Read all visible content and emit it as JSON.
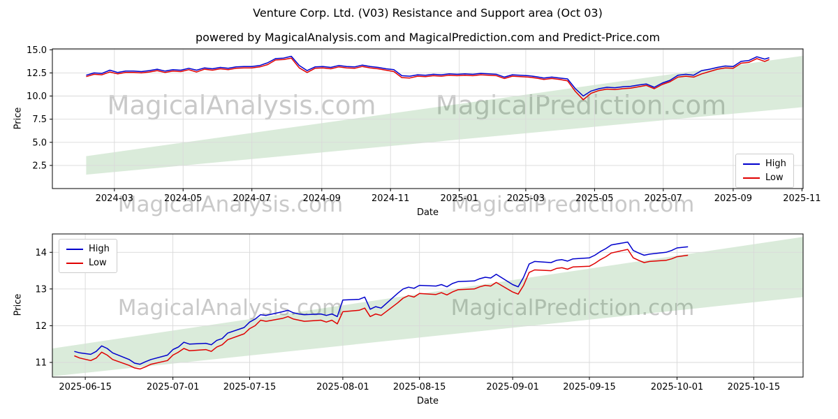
{
  "figure": {
    "title": "Venture Corp. Ltd. (V03) Resistance and Support area (Oct 03)",
    "subtitle": "powered by MagicalAnalysis.com and MagicalPrediction.com and Predict-Price.com"
  },
  "watermarks": {
    "left": "MagicalAnalysis.com",
    "right": "MagicalPrediction.com"
  },
  "colors": {
    "high": "#0000cd",
    "low": "#e00000",
    "band": "rgba(34,139,34,0.17)",
    "grid": "#d9d9d9",
    "axis": "#000000",
    "watermark": "#c9c9c9",
    "background": "#ffffff"
  },
  "chart_data": [
    {
      "type": "line",
      "xlabel": "Date",
      "ylabel": "Price",
      "x_unit": "days since 2024-02-05",
      "xlim": [
        -30,
        636
      ],
      "ylim": [
        0,
        15.1
      ],
      "grid": true,
      "legend_loc": "center right",
      "xticks": [
        {
          "label": "2024-03",
          "day": 25
        },
        {
          "label": "2024-05",
          "day": 86
        },
        {
          "label": "2024-07",
          "day": 147
        },
        {
          "label": "2024-09",
          "day": 209
        },
        {
          "label": "2024-11",
          "day": 270
        },
        {
          "label": "2025-01",
          "day": 331
        },
        {
          "label": "2025-03",
          "day": 390
        },
        {
          "label": "2025-05",
          "day": 451
        },
        {
          "label": "2025-07",
          "day": 512
        },
        {
          "label": "2025-09",
          "day": 574
        },
        {
          "label": "2025-11",
          "day": 635
        }
      ],
      "yticks": {
        "values": [
          2.5,
          5.0,
          7.5,
          10.0,
          12.5,
          15.0
        ],
        "labels": [
          "2.5",
          "5.0",
          "7.5",
          "10.0",
          "12.5",
          "15.0"
        ]
      },
      "x": [
        0,
        7,
        14,
        21,
        28,
        35,
        42,
        49,
        56,
        63,
        70,
        77,
        84,
        91,
        98,
        105,
        112,
        119,
        126,
        133,
        140,
        147,
        154,
        161,
        168,
        175,
        182,
        189,
        196,
        203,
        210,
        217,
        224,
        231,
        238,
        245,
        252,
        259,
        266,
        273,
        280,
        287,
        294,
        301,
        308,
        315,
        322,
        329,
        336,
        343,
        350,
        357,
        364,
        371,
        378,
        385,
        392,
        399,
        406,
        413,
        420,
        427,
        434,
        441,
        448,
        455,
        462,
        469,
        476,
        483,
        490,
        497,
        504,
        511,
        518,
        525,
        532,
        539,
        546,
        553,
        560,
        567,
        574,
        581,
        588,
        595,
        602,
        606
      ],
      "series": [
        {
          "name": "High",
          "color_key": "high",
          "values": [
            12.25,
            12.5,
            12.45,
            12.8,
            12.55,
            12.7,
            12.7,
            12.65,
            12.75,
            12.9,
            12.7,
            12.85,
            12.8,
            13.0,
            12.8,
            13.05,
            12.95,
            13.1,
            13.0,
            13.15,
            13.2,
            13.2,
            13.3,
            13.6,
            14.05,
            14.1,
            14.3,
            13.3,
            12.75,
            13.15,
            13.2,
            13.1,
            13.3,
            13.2,
            13.15,
            13.35,
            13.2,
            13.1,
            12.95,
            12.85,
            12.2,
            12.15,
            12.3,
            12.25,
            12.35,
            12.3,
            12.4,
            12.35,
            12.4,
            12.35,
            12.45,
            12.4,
            12.35,
            12.05,
            12.3,
            12.25,
            12.2,
            12.1,
            11.95,
            12.05,
            11.95,
            11.85,
            10.8,
            10.0,
            10.55,
            10.8,
            10.95,
            10.9,
            11.0,
            11.05,
            11.2,
            11.3,
            10.95,
            11.4,
            11.7,
            12.25,
            12.35,
            12.25,
            12.75,
            12.9,
            13.1,
            13.25,
            13.2,
            13.75,
            13.85,
            14.25,
            14.0,
            14.15
          ]
        },
        {
          "name": "Low",
          "color_key": "low",
          "values": [
            12.1,
            12.35,
            12.3,
            12.6,
            12.4,
            12.55,
            12.55,
            12.5,
            12.6,
            12.75,
            12.55,
            12.7,
            12.65,
            12.85,
            12.6,
            12.9,
            12.8,
            12.95,
            12.85,
            13.0,
            13.05,
            13.05,
            13.15,
            13.4,
            13.9,
            13.95,
            14.1,
            13.05,
            12.55,
            13.0,
            13.05,
            12.95,
            13.15,
            13.05,
            13.0,
            13.2,
            13.05,
            12.95,
            12.8,
            12.65,
            12.0,
            11.95,
            12.15,
            12.1,
            12.2,
            12.15,
            12.25,
            12.2,
            12.25,
            12.2,
            12.3,
            12.25,
            12.2,
            11.9,
            12.15,
            12.1,
            12.05,
            11.95,
            11.8,
            11.9,
            11.8,
            11.65,
            10.5,
            9.6,
            10.3,
            10.6,
            10.75,
            10.7,
            10.8,
            10.85,
            11.0,
            11.15,
            10.8,
            11.25,
            11.55,
            12.05,
            12.15,
            12.05,
            12.4,
            12.65,
            12.9,
            13.05,
            13.0,
            13.55,
            13.65,
            14.05,
            13.75,
            13.95
          ]
        }
      ],
      "band": {
        "name": "support-resistance-area",
        "x": [
          0,
          636
        ],
        "lower": [
          1.5,
          8.8
        ],
        "upper": [
          3.5,
          14.35
        ]
      }
    },
    {
      "type": "line",
      "xlabel": "Date",
      "ylabel": "Price",
      "x_unit": "days since 2025-06-13",
      "xlim": [
        -4,
        133
      ],
      "ylim": [
        10.6,
        14.5
      ],
      "grid": true,
      "legend_loc": "upper left",
      "xticks": [
        {
          "label": "2025-06-15",
          "day": 2
        },
        {
          "label": "2025-07-01",
          "day": 18
        },
        {
          "label": "2025-07-15",
          "day": 32
        },
        {
          "label": "2025-08-01",
          "day": 49
        },
        {
          "label": "2025-08-15",
          "day": 63
        },
        {
          "label": "2025-09-01",
          "day": 80
        },
        {
          "label": "2025-09-15",
          "day": 94
        },
        {
          "label": "2025-10-01",
          "day": 110
        },
        {
          "label": "2025-10-15",
          "day": 124
        }
      ],
      "yticks": {
        "values": [
          11,
          12,
          13,
          14
        ],
        "labels": [
          "11",
          "12",
          "13",
          "14"
        ]
      },
      "x": [
        0,
        1,
        3,
        4,
        5,
        6,
        7,
        10,
        11,
        12,
        13,
        14,
        17,
        18,
        19,
        20,
        21,
        24,
        25,
        26,
        27,
        28,
        31,
        32,
        33,
        34,
        35,
        38,
        39,
        40,
        41,
        42,
        45,
        46,
        47,
        48,
        49,
        52,
        53,
        54,
        55,
        56,
        59,
        60,
        61,
        62,
        63,
        66,
        67,
        68,
        69,
        70,
        73,
        74,
        75,
        76,
        77,
        80,
        81,
        82,
        83,
        84,
        87,
        88,
        89,
        90,
        91,
        94,
        95,
        96,
        97,
        98,
        101,
        102,
        103,
        104,
        105,
        108,
        109,
        110,
        112
      ],
      "series": [
        {
          "name": "High",
          "color_key": "high",
          "values": [
            11.3,
            11.26,
            11.22,
            11.3,
            11.45,
            11.38,
            11.26,
            11.08,
            10.98,
            10.95,
            11.02,
            11.08,
            11.2,
            11.35,
            11.42,
            11.55,
            11.5,
            11.52,
            11.48,
            11.6,
            11.65,
            11.8,
            11.95,
            12.1,
            12.18,
            12.3,
            12.28,
            12.38,
            12.42,
            12.35,
            12.32,
            12.3,
            12.32,
            12.28,
            12.32,
            12.25,
            12.7,
            12.72,
            12.78,
            12.45,
            12.52,
            12.48,
            12.88,
            13.0,
            13.05,
            13.02,
            13.1,
            13.08,
            13.12,
            13.06,
            13.15,
            13.2,
            13.22,
            13.28,
            13.32,
            13.3,
            13.4,
            13.12,
            13.06,
            13.32,
            13.68,
            13.75,
            13.72,
            13.78,
            13.8,
            13.76,
            13.82,
            13.85,
            13.92,
            14.02,
            14.1,
            14.2,
            14.28,
            14.05,
            13.98,
            13.92,
            13.95,
            14.0,
            14.05,
            14.12,
            14.15
          ]
        },
        {
          "name": "Low",
          "color_key": "low",
          "values": [
            11.18,
            11.12,
            11.05,
            11.12,
            11.28,
            11.2,
            11.08,
            10.92,
            10.85,
            10.82,
            10.88,
            10.95,
            11.05,
            11.2,
            11.28,
            11.38,
            11.32,
            11.35,
            11.3,
            11.42,
            11.48,
            11.62,
            11.78,
            11.92,
            12.0,
            12.15,
            12.12,
            12.2,
            12.25,
            12.18,
            12.15,
            12.12,
            12.15,
            12.1,
            12.15,
            12.05,
            12.38,
            12.42,
            12.48,
            12.25,
            12.32,
            12.28,
            12.62,
            12.75,
            12.82,
            12.78,
            12.88,
            12.85,
            12.9,
            12.84,
            12.92,
            12.98,
            13.0,
            13.06,
            13.1,
            13.08,
            13.18,
            12.92,
            12.86,
            13.1,
            13.45,
            13.52,
            13.5,
            13.56,
            13.58,
            13.54,
            13.6,
            13.62,
            13.7,
            13.8,
            13.88,
            13.98,
            14.08,
            13.85,
            13.78,
            13.72,
            13.75,
            13.78,
            13.82,
            13.88,
            13.92
          ]
        }
      ],
      "band": {
        "name": "support-resistance-area",
        "x": [
          -4,
          133
        ],
        "lower": [
          10.62,
          12.78
        ],
        "upper": [
          11.38,
          14.42
        ]
      }
    }
  ]
}
